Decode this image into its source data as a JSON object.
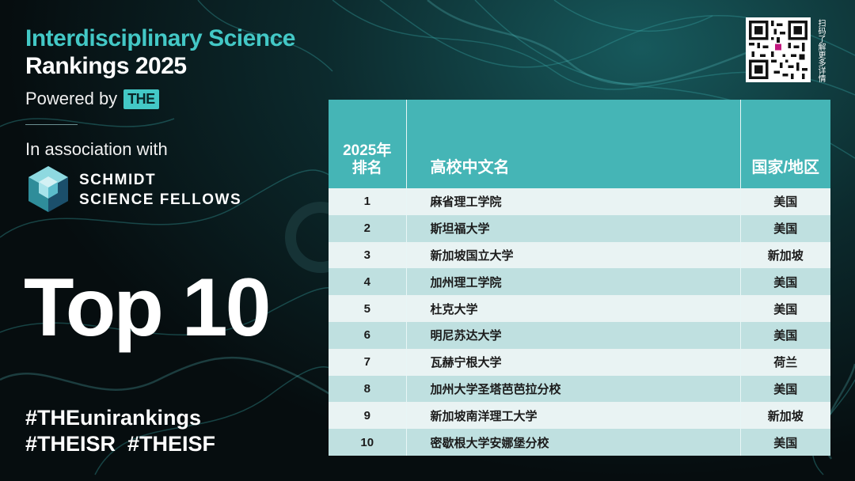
{
  "header": {
    "title_line1": "Interdisciplinary Science",
    "title_line2": "Rankings 2025",
    "powered_by": "Powered by",
    "the_logo": "THE",
    "association": "In association with",
    "partner_line1": "SCHMIDT",
    "partner_line2": "SCIENCE FELLOWS"
  },
  "headline": "Top 10",
  "hashtags": {
    "line1": "#THEunirankings",
    "line2": "#THEISR  #THEISF"
  },
  "qr": {
    "caption": "扫码了解更多详情"
  },
  "table": {
    "headers": {
      "rank_line1": "2025年",
      "rank_line2": "排名",
      "name": "高校中文名",
      "country": "国家/地区"
    },
    "rows": [
      {
        "rank": "1",
        "name": "麻省理工学院",
        "country": "美国"
      },
      {
        "rank": "2",
        "name": "斯坦福大学",
        "country": "美国"
      },
      {
        "rank": "3",
        "name": "新加坡国立大学",
        "country": "新加坡"
      },
      {
        "rank": "4",
        "name": "加州理工学院",
        "country": "美国"
      },
      {
        "rank": "5",
        "name": "杜克大学",
        "country": "美国"
      },
      {
        "rank": "6",
        "name": "明尼苏达大学",
        "country": "美国"
      },
      {
        "rank": "7",
        "name": "瓦赫宁根大学",
        "country": "荷兰"
      },
      {
        "rank": "8",
        "name": "加州大学圣塔芭芭拉分校",
        "country": "美国"
      },
      {
        "rank": "9",
        "name": "新加坡南洋理工大学",
        "country": "新加坡"
      },
      {
        "rank": "10",
        "name": "密歇根大学安娜堡分校",
        "country": "美国"
      }
    ]
  },
  "colors": {
    "accent": "#43c8c6",
    "table_header": "#45b5b6",
    "row_light": "#e9f3f3",
    "row_dark": "#bfe0e0"
  }
}
